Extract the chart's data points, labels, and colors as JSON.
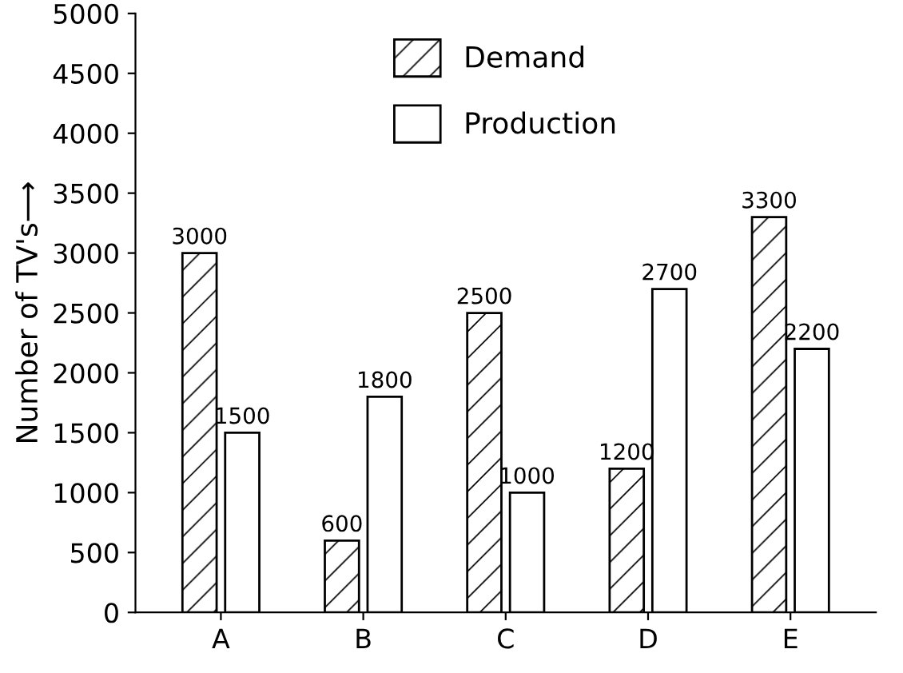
{
  "chart_data": {
    "type": "bar",
    "ylabel": "Number of TV's⟶",
    "categories": [
      "A",
      "B",
      "C",
      "D",
      "E"
    ],
    "series": [
      {
        "name": "Demand",
        "color": "#000000",
        "values": [
          3000,
          600,
          2500,
          1200,
          3300
        ]
      },
      {
        "name": "Production",
        "color": "#000000",
        "values": [
          1500,
          1800,
          1000,
          2700,
          2200
        ]
      }
    ],
    "ylim": [
      0,
      5000
    ],
    "yticks": [
      0,
      500,
      1000,
      1500,
      2000,
      2500,
      3000,
      3500,
      4000,
      4500,
      5000
    ],
    "data_labels": true,
    "legend": "top",
    "grid": false
  }
}
